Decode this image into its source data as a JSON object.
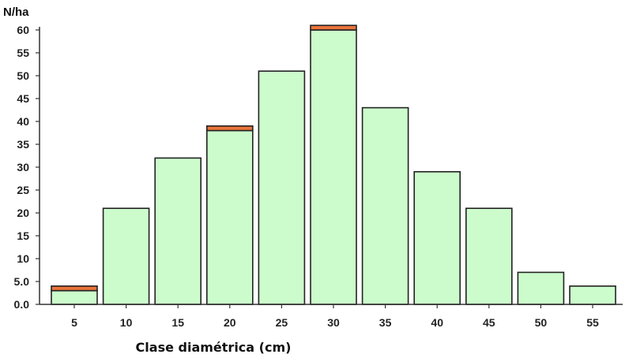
{
  "chart_data": {
    "type": "bar",
    "ylabel": "N/ha",
    "xlabel": "Clase diamétrica (cm)",
    "categories": [
      "5",
      "10",
      "15",
      "20",
      "25",
      "30",
      "35",
      "40",
      "45",
      "50",
      "55"
    ],
    "series": [
      {
        "values": [
          3,
          21,
          32,
          38,
          51,
          60,
          43,
          29,
          21,
          7,
          4
        ]
      },
      {
        "values": [
          1,
          0,
          0,
          1,
          0,
          1,
          0,
          0,
          0,
          0,
          0
        ]
      }
    ],
    "ylim": [
      0,
      60
    ],
    "yticks": [
      "0.0",
      "5.0",
      "10",
      "15",
      "20",
      "25",
      "30",
      "35",
      "40",
      "45",
      "50",
      "55",
      "60"
    ],
    "colors": {
      "main": "#ccfccc",
      "top": "#e8733a",
      "outline": "#222222",
      "axis": "#333333"
    },
    "grid": false,
    "legend": "none"
  }
}
